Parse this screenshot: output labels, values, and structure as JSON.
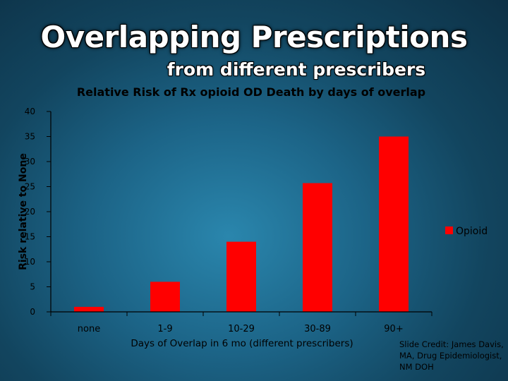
{
  "slide": {
    "title": "Overlapping Prescriptions",
    "subtitle": "from different prescribers",
    "credit": "Slide Credit: James Davis, MA, Drug Epidemiologist, NM DOH"
  },
  "chart_data": {
    "type": "bar",
    "title": "Relative Risk of Rx opioid OD Death by days of overlap",
    "xlabel": "Days of Overlap in 6 mo (different prescribers)",
    "ylabel": "Risk relative to None",
    "categories": [
      "none",
      "1-9",
      "10-29",
      "30-89",
      "90+"
    ],
    "series": [
      {
        "name": "Opioid",
        "values": [
          1,
          6,
          14,
          25.7,
          35
        ]
      }
    ],
    "ylim": [
      0,
      40
    ],
    "yticks": [
      0,
      5,
      10,
      15,
      20,
      25,
      30,
      35,
      40
    ],
    "grid": false,
    "legend_position": "right",
    "colors": {
      "bar": "#ff0000",
      "axis": "#000000"
    }
  }
}
